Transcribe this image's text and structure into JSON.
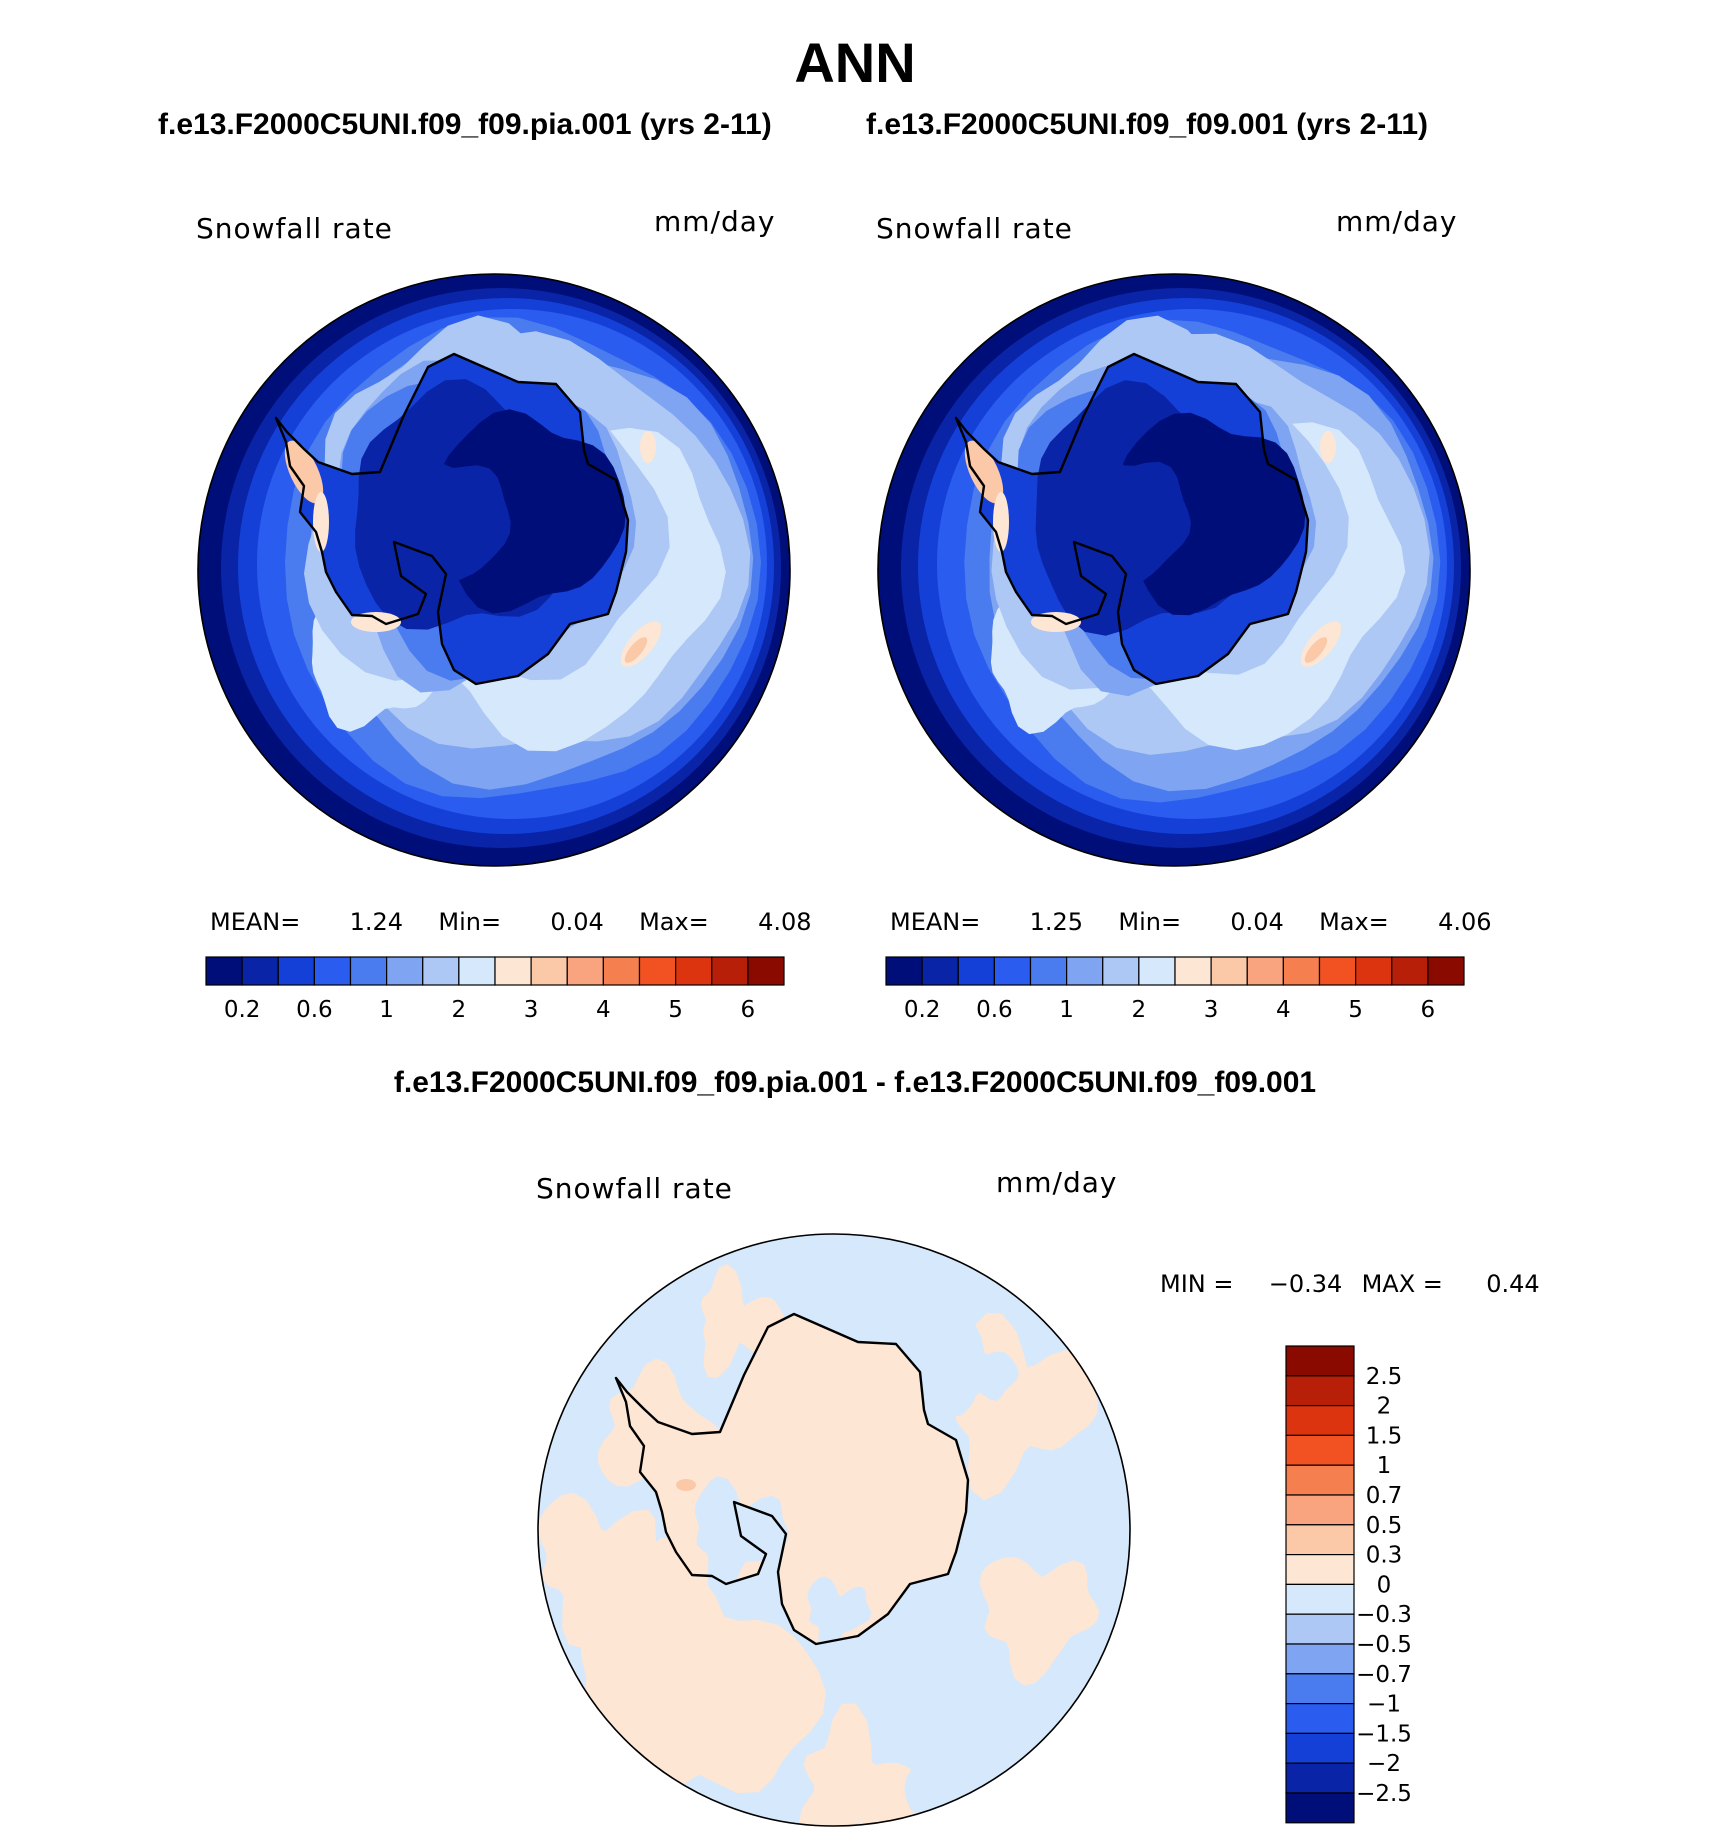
{
  "title": "ANN",
  "left_case_title": "f.e13.F2000C5UNI.f09_f09.pia.001 (yrs 2-11)",
  "right_case_title": "f.e13.F2000C5UNI.f09_f09.001 (yrs 2-11)",
  "diff_title": "f.e13.F2000C5UNI.f09_f09.pia.001 - f.e13.F2000C5UNI.f09_f09.001",
  "colors": {
    "abs_scale": [
      "#000e7a",
      "#0a24a8",
      "#1540d8",
      "#2b5cf0",
      "#4a7cf0",
      "#7ea4f2",
      "#aec8f5",
      "#d6e8fb",
      "#fde6d4",
      "#fbc8a8",
      "#f9a47e",
      "#f57f4e",
      "#f25222",
      "#dd3410",
      "#b81f08",
      "#8a0a00"
    ],
    "diff_scale": [
      "#000e7a",
      "#0a24a8",
      "#1540d8",
      "#2b5cf0",
      "#4a7cf0",
      "#7ea4f2",
      "#aec8f5",
      "#d6e8fb",
      "#fde6d4",
      "#fbc8a8",
      "#f9a47e",
      "#f57f4e",
      "#f25222",
      "#dd3410",
      "#b81f08",
      "#8a0a00"
    ],
    "coast": "#000000"
  },
  "chart_data": [
    {
      "type": "heatmap",
      "projection": "south-polar-stereographic",
      "title": "f.e13.F2000C5UNI.f09_f09.pia.001 (yrs 2-11)",
      "variable": "Snowfall rate",
      "units": "mm/day",
      "mean_label": "MEAN=",
      "mean": "1.24",
      "min_label": "Min=",
      "min": "0.04",
      "max_label": "Max=",
      "max": "4.08",
      "contour_levels": [
        0.1,
        0.2,
        0.4,
        0.6,
        0.8,
        1,
        1.5,
        2,
        2.5,
        3,
        3.5,
        4,
        4.5,
        5,
        5.5,
        6
      ],
      "colorbar_labels": [
        "0.2",
        "0.6",
        "1",
        "2",
        "3",
        "4",
        "5",
        "6"
      ],
      "colorbar_label_boundaries": [
        1,
        3,
        5,
        7,
        9,
        11,
        13,
        15
      ],
      "colorbar_orientation": "horizontal"
    },
    {
      "type": "heatmap",
      "projection": "south-polar-stereographic",
      "title": "f.e13.F2000C5UNI.f09_f09.001 (yrs 2-11)",
      "variable": "Snowfall rate",
      "units": "mm/day",
      "mean_label": "MEAN=",
      "mean": "1.25",
      "min_label": "Min=",
      "min": "0.04",
      "max_label": "Max=",
      "max": "4.06",
      "contour_levels": [
        0.1,
        0.2,
        0.4,
        0.6,
        0.8,
        1,
        1.5,
        2,
        2.5,
        3,
        3.5,
        4,
        4.5,
        5,
        5.5,
        6
      ],
      "colorbar_labels": [
        "0.2",
        "0.6",
        "1",
        "2",
        "3",
        "4",
        "5",
        "6"
      ],
      "colorbar_label_boundaries": [
        1,
        3,
        5,
        7,
        9,
        11,
        13,
        15
      ],
      "colorbar_orientation": "horizontal"
    },
    {
      "type": "heatmap",
      "projection": "south-polar-stereographic",
      "title": "f.e13.F2000C5UNI.f09_f09.pia.001 - f.e13.F2000C5UNI.f09_f09.001",
      "variable": "Snowfall rate",
      "units": "mm/day",
      "min_label": "MIN =",
      "min": "−0.34",
      "max_label": "MAX =",
      "max": "0.44",
      "contour_levels": [
        -2.5,
        -2,
        -1.5,
        -1,
        -0.7,
        -0.5,
        -0.3,
        0,
        0.3,
        0.5,
        0.7,
        1,
        1.5,
        2,
        2.5
      ],
      "colorbar_labels": [
        "2.5",
        "2",
        "1.5",
        "1",
        "0.7",
        "0.5",
        "0.3",
        "0",
        "−0.3",
        "−0.5",
        "−0.7",
        "−1",
        "−1.5",
        "−2",
        "−2.5"
      ],
      "colorbar_orientation": "vertical"
    }
  ]
}
